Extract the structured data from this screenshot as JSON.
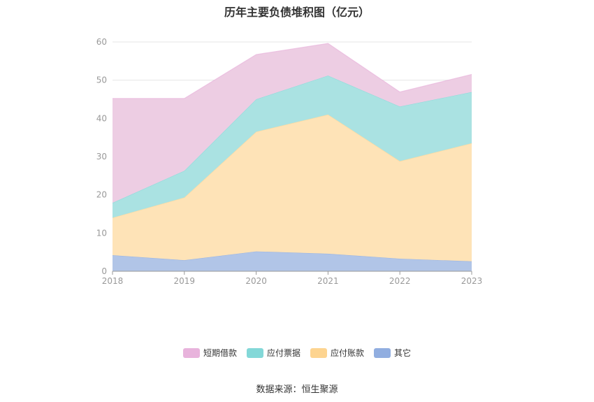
{
  "chart_data": {
    "type": "area",
    "title": "历年主要负债堆积图（亿元）",
    "stacked": true,
    "categories": [
      "2018",
      "2019",
      "2020",
      "2021",
      "2022",
      "2023"
    ],
    "ylim": [
      0,
      60
    ],
    "yticks": [
      0,
      10,
      20,
      30,
      40,
      50,
      60
    ],
    "grid": true,
    "legend_position": "bottom",
    "series": [
      {
        "name": "其它",
        "color": "#91aee0",
        "fill": "#b1c5e7",
        "values": [
          4.2,
          2.9,
          5.2,
          4.6,
          3.3,
          2.6
        ]
      },
      {
        "name": "应付账款",
        "color": "#fdd490",
        "fill": "#fee3b7",
        "values": [
          9.8,
          16.4,
          31.3,
          36.4,
          25.5,
          30.9
        ]
      },
      {
        "name": "应付票据",
        "color": "#83d8d8",
        "fill": "#aae2e2",
        "values": [
          3.9,
          7.0,
          8.5,
          10.2,
          14.3,
          13.4
        ]
      },
      {
        "name": "短期借款",
        "color": "#e8b3dc",
        "fill": "#edcde3",
        "values": [
          27.3,
          18.9,
          11.7,
          8.4,
          3.8,
          4.6
        ]
      }
    ]
  },
  "source": "数据来源：恒生聚源"
}
